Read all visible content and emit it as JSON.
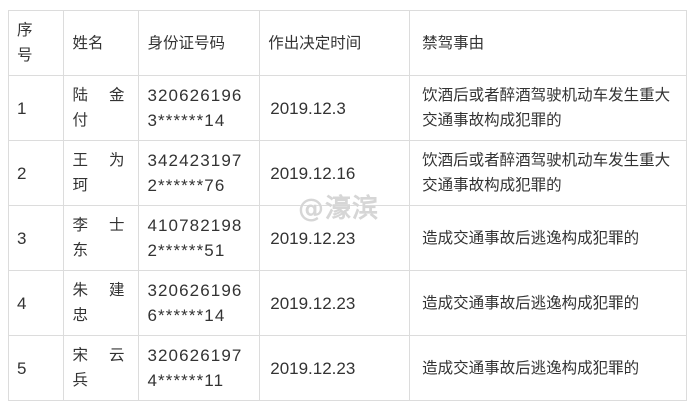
{
  "table": {
    "headers": [
      "序号",
      "姓名",
      "身份证号码",
      "作出决定时间",
      "禁驾事由"
    ],
    "rows": [
      {
        "seq": "1",
        "name": "陆金付",
        "id": "3206261963******14",
        "date": "2019.12.3",
        "reason": "饮酒后或者醉酒驾驶机动车发生重大交通事故构成犯罪的"
      },
      {
        "seq": "2",
        "name": "王为珂",
        "id": "3424231972******76",
        "date": "2019.12.16",
        "reason": "饮酒后或者醉酒驾驶机动车发生重大交通事故构成犯罪的"
      },
      {
        "seq": "3",
        "name": "李士东",
        "id": "4107821982******51",
        "date": "2019.12.23",
        "reason": "造成交通事故后逃逸构成犯罪的"
      },
      {
        "seq": "4",
        "name": "朱建忠",
        "id": "3206261966******14",
        "date": "2019.12.23",
        "reason": "造成交通事故后逃逸构成犯罪的"
      },
      {
        "seq": "5",
        "name": "宋云兵",
        "id": "3206261974******11",
        "date": "2019.12.23",
        "reason": "造成交通事故后逃逸构成犯罪的"
      }
    ]
  },
  "watermark": "@濠滨",
  "colors": {
    "border": "#dcdcdc",
    "text": "#333333"
  }
}
